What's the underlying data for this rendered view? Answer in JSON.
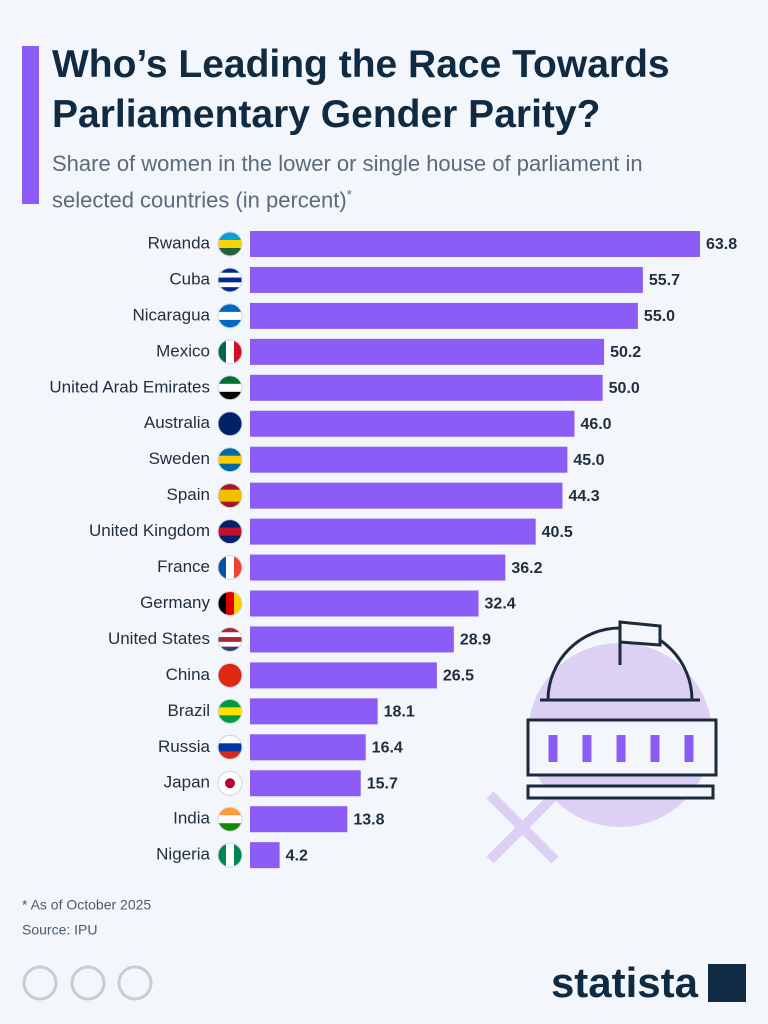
{
  "chart_data": {
    "type": "bar",
    "orientation": "horizontal",
    "title": "Who’s Leading the Race Towards Parliamentary Gender Parity?",
    "subtitle": "Share of women in the lower or single house of parliament in selected countries (in percent)",
    "subtitle_note": "*",
    "categories": [
      "Rwanda",
      "Cuba",
      "Nicaragua",
      "Mexico",
      "United Arab Emirates",
      "Australia",
      "Sweden",
      "Spain",
      "United Kingdom",
      "France",
      "Germany",
      "United States",
      "China",
      "Brazil",
      "Russia",
      "Japan",
      "India",
      "Nigeria"
    ],
    "values": [
      63.8,
      55.7,
      55.0,
      50.2,
      50.0,
      46.0,
      45.0,
      44.3,
      40.5,
      36.2,
      32.4,
      28.9,
      26.5,
      18.1,
      16.4,
      15.7,
      13.8,
      4.2
    ],
    "value_labels": [
      "63.8",
      "55.7",
      "55.0",
      "50.2",
      "50.0",
      "46.0",
      "45.0",
      "44.3",
      "40.5",
      "36.2",
      "32.4",
      "28.9",
      "26.5",
      "18.1",
      "16.4",
      "15.7",
      "13.8",
      "4.2"
    ],
    "color": "#8b5cf6",
    "footnote": "* As of October 2025",
    "source": "Source: IPU",
    "brand": "statista"
  }
}
